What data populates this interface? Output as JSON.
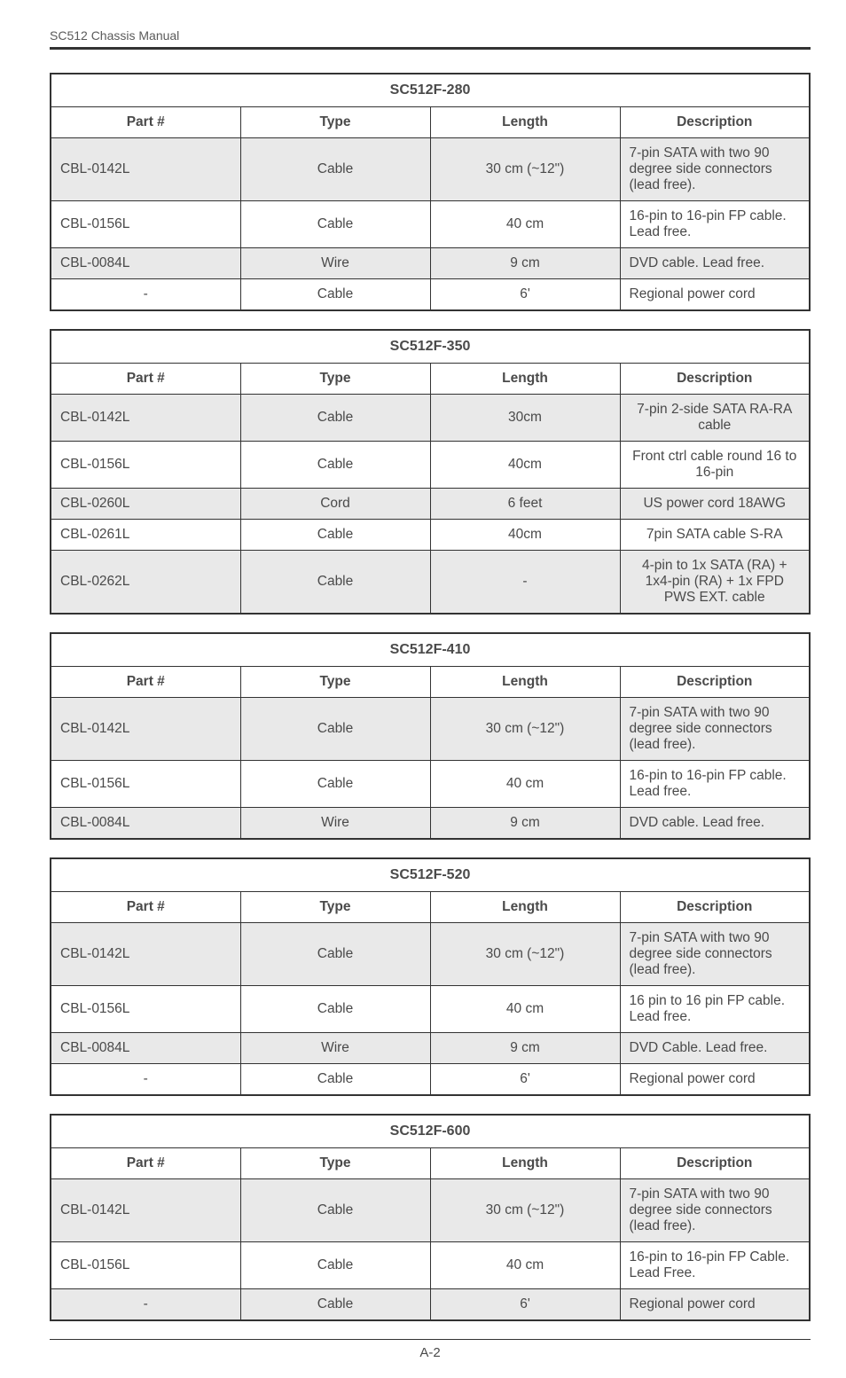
{
  "header": {
    "label": "SC512 Chassis Manual"
  },
  "footer": {
    "page": "A-2"
  },
  "head": {
    "part": "Part #",
    "type": "Type",
    "length": "Length",
    "desc": "Description"
  },
  "tables": [
    {
      "title": "SC512F-280",
      "centerDesc": false,
      "rows": [
        {
          "shade": true,
          "part": "CBL-0142L",
          "type": "Cable",
          "length": "30 cm (~12\")",
          "desc": "7-pin SATA with two 90 degree side connectors (lead free)."
        },
        {
          "shade": false,
          "part": "CBL-0156L",
          "type": "Cable",
          "length": "40 cm",
          "desc": "16-pin to 16-pin FP cable. Lead free."
        },
        {
          "shade": true,
          "part": "CBL-0084L",
          "type": "Wire",
          "length": "9 cm",
          "desc": "DVD cable. Lead free."
        },
        {
          "shade": false,
          "part": "-",
          "type": "Cable",
          "length": "6'",
          "desc": "Regional power cord",
          "partCenter": true
        }
      ]
    },
    {
      "title": "SC512F-350",
      "centerDesc": true,
      "rows": [
        {
          "shade": true,
          "part": "CBL-0142L",
          "type": "Cable",
          "length": "30cm",
          "desc": "7-pin 2-side SATA RA-RA cable"
        },
        {
          "shade": false,
          "part": "CBL-0156L",
          "type": "Cable",
          "length": "40cm",
          "desc": "Front ctrl cable round 16 to 16-pin"
        },
        {
          "shade": true,
          "part": "CBL-0260L",
          "type": "Cord",
          "length": "6 feet",
          "desc": "US power cord 18AWG"
        },
        {
          "shade": false,
          "part": "CBL-0261L",
          "type": "Cable",
          "length": "40cm",
          "desc": "7pin SATA cable S-RA"
        },
        {
          "shade": true,
          "part": "CBL-0262L",
          "type": "Cable",
          "length": "-",
          "desc": "4-pin to 1x SATA (RA) + 1x4-pin (RA) + 1x FPD PWS EXT. cable"
        }
      ]
    },
    {
      "title": "SC512F-410",
      "centerDesc": false,
      "rows": [
        {
          "shade": true,
          "part": "CBL-0142L",
          "type": "Cable",
          "length": "30 cm (~12\")",
          "desc": "7-pin SATA with two 90 degree side connectors (lead free)."
        },
        {
          "shade": false,
          "part": "CBL-0156L",
          "type": "Cable",
          "length": "40 cm",
          "desc": "16-pin to 16-pin FP cable. Lead free."
        },
        {
          "shade": true,
          "part": "CBL-0084L",
          "type": "Wire",
          "length": "9 cm",
          "desc": "DVD cable. Lead free."
        }
      ]
    },
    {
      "title": "SC512F-520",
      "centerDesc": false,
      "rows": [
        {
          "shade": true,
          "part": "CBL-0142L",
          "type": "Cable",
          "length": "30 cm (~12\")",
          "desc": "7-pin SATA with two 90 degree side connectors (lead free)."
        },
        {
          "shade": false,
          "part": "CBL-0156L",
          "type": "Cable",
          "length": "40 cm",
          "desc": "16 pin to 16 pin FP cable. Lead free."
        },
        {
          "shade": true,
          "part": "CBL-0084L",
          "type": "Wire",
          "length": "9 cm",
          "desc": "DVD Cable. Lead free."
        },
        {
          "shade": false,
          "part": "-",
          "type": "Cable",
          "length": "6'",
          "desc": "Regional power cord",
          "partCenter": true
        }
      ]
    },
    {
      "title": "SC512F-600",
      "centerDesc": false,
      "rows": [
        {
          "shade": true,
          "part": "CBL-0142L",
          "type": "Cable",
          "length": "30 cm (~12\")",
          "desc": "7-pin SATA with two 90 degree side connectors (lead free)."
        },
        {
          "shade": false,
          "part": "CBL-0156L",
          "type": "Cable",
          "length": "40 cm",
          "desc": "16-pin to 16-pin FP Cable. Lead Free."
        },
        {
          "shade": true,
          "part": "-",
          "type": "Cable",
          "length": "6'",
          "desc": "Regional power cord",
          "partCenter": true
        }
      ]
    }
  ]
}
